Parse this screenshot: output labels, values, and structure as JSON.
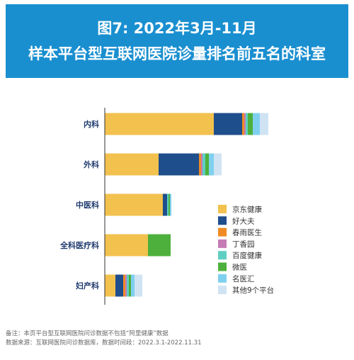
{
  "header": {
    "title_line1": "图7: 2022年3月-11月",
    "title_line2": "样本平台型互联网医院诊量排名前五名的科室"
  },
  "chart_data": {
    "type": "bar",
    "orientation": "horizontal",
    "stacked": true,
    "categories": [
      "内科",
      "外科",
      "中医科",
      "全科医疗科",
      "妇产科"
    ],
    "series": [
      {
        "name": "京东健康",
        "color": "#f2c14e",
        "values": [
          154,
          76,
          82,
          61,
          15
        ]
      },
      {
        "name": "好大夫",
        "color": "#1f4e8c",
        "values": [
          40,
          57,
          6,
          0,
          11
        ]
      },
      {
        "name": "春雨医生",
        "color": "#f08a24",
        "values": [
          3,
          3,
          0,
          0,
          3
        ]
      },
      {
        "name": "丁香园",
        "color": "#c57bb5",
        "values": [
          2,
          2,
          0,
          0,
          2
        ]
      },
      {
        "name": "百度健康",
        "color": "#5ecfc2",
        "values": [
          3,
          4,
          2,
          0,
          3
        ]
      },
      {
        "name": "微医",
        "color": "#4db03c",
        "values": [
          7,
          5,
          2,
          32,
          3
        ]
      },
      {
        "name": "名医汇",
        "color": "#7fd0ef",
        "values": [
          10,
          7,
          2,
          0,
          5
        ]
      },
      {
        "name": "其他9个平台",
        "color": "#cfe3f3",
        "values": [
          12,
          11,
          0,
          0,
          11
        ]
      }
    ],
    "grid": false,
    "legend_position": "right"
  },
  "footnotes": {
    "note": "备注：本页平台型互联网医院问诊数据不包括“阿里健康”数据",
    "source": "数据来源：互联网医院问诊数据库，数据时间段：2022.3.1-2022.11.31"
  }
}
